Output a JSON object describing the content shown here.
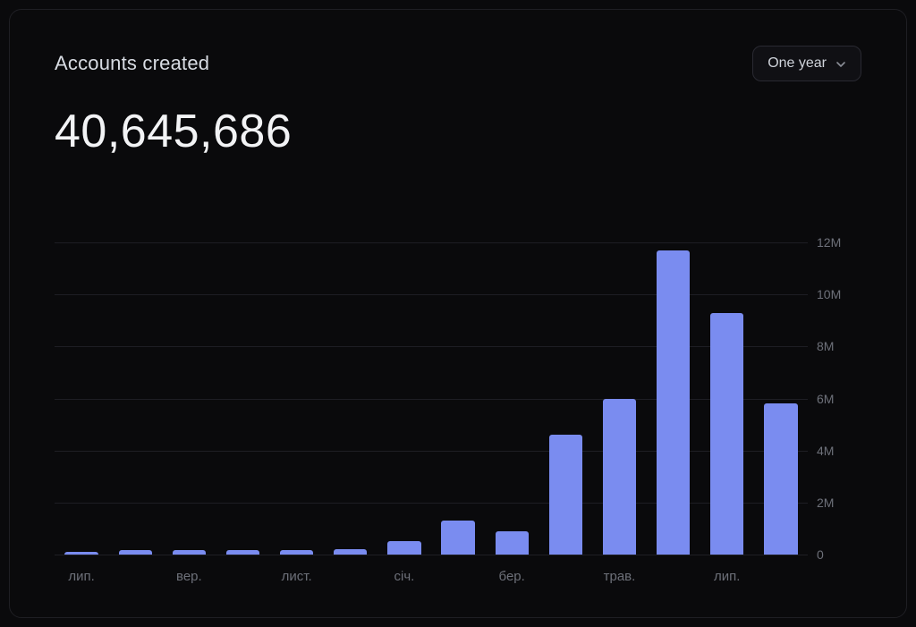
{
  "card": {
    "title": "Accounts created",
    "total": "40,645,686",
    "title_fontsize": 22,
    "total_fontsize": 52,
    "title_color": "#d8dce3",
    "total_color": "#f2f3f5",
    "background": "#0a0a0c",
    "border_color": "#1f1f24"
  },
  "selector": {
    "label": "One year",
    "border_color": "#2a2a32",
    "text_color": "#cfd3da",
    "chevron_color": "#8b8e97"
  },
  "chart": {
    "type": "bar",
    "bar_color": "#7a8cf0",
    "bar_width_ratio": 0.62,
    "grid_color": "#1e1e24",
    "axis_label_color": "#6d7079",
    "axis_label_fontsize": 14,
    "background_color": "#0a0a0c",
    "ylim": [
      0,
      12000000
    ],
    "yticks": [
      0,
      2000000,
      4000000,
      6000000,
      8000000,
      10000000,
      12000000
    ],
    "ytick_labels": [
      "0",
      "2M",
      "4M",
      "6M",
      "8M",
      "10M",
      "12M"
    ],
    "categories": [
      "лип.",
      "",
      "вер.",
      "",
      "лист.",
      "",
      "січ.",
      "",
      "бер.",
      "",
      "трав.",
      "",
      "лип."
    ],
    "values": [
      120000,
      180000,
      180000,
      180000,
      180000,
      200000,
      520000,
      1300000,
      900000,
      4600000,
      6000000,
      11700000,
      9300000
    ],
    "last_partial_value": 5800000
  }
}
